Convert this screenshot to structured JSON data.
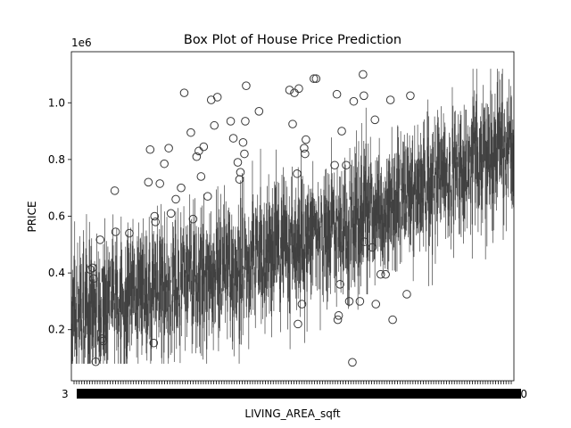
{
  "chart_data": {
    "type": "box",
    "title": "Box Plot of House Price Prediction",
    "xlabel": "LIVING_AREA_sqft",
    "ylabel": "PRICE",
    "y_offset_label": "1e6",
    "y_ticks": [
      0.2,
      0.4,
      0.6,
      0.8,
      1.0
    ],
    "y_tick_labels": [
      "0.2",
      "0.4",
      "0.6",
      "0.8",
      "1.0"
    ],
    "ylim": [
      0.02,
      1.18
    ],
    "x_first_tick_label": "3",
    "x_last_tick_label": "0",
    "x_category_count": 600,
    "grid": false,
    "box_color": "#404040",
    "median_trend": [
      [
        0.0,
        0.25
      ],
      [
        0.1,
        0.3
      ],
      [
        0.2,
        0.33
      ],
      [
        0.3,
        0.38
      ],
      [
        0.4,
        0.42
      ],
      [
        0.5,
        0.48
      ],
      [
        0.6,
        0.55
      ],
      [
        0.7,
        0.63
      ],
      [
        0.8,
        0.72
      ],
      [
        0.9,
        0.78
      ],
      [
        1.0,
        0.82
      ]
    ],
    "outliers": [
      [
        0.043,
        0.412
      ],
      [
        0.048,
        0.418
      ],
      [
        0.05,
        0.38
      ],
      [
        0.055,
        0.087
      ],
      [
        0.065,
        0.517
      ],
      [
        0.069,
        0.168
      ],
      [
        0.072,
        0.16
      ],
      [
        0.098,
        0.69
      ],
      [
        0.1,
        0.545
      ],
      [
        0.131,
        0.54
      ],
      [
        0.174,
        0.72
      ],
      [
        0.178,
        0.835
      ],
      [
        0.186,
        0.153
      ],
      [
        0.188,
        0.6
      ],
      [
        0.19,
        0.58
      ],
      [
        0.2,
        0.715
      ],
      [
        0.21,
        0.785
      ],
      [
        0.22,
        0.84
      ],
      [
        0.225,
        0.61
      ],
      [
        0.236,
        0.66
      ],
      [
        0.248,
        0.7
      ],
      [
        0.255,
        1.035
      ],
      [
        0.27,
        0.895
      ],
      [
        0.275,
        0.59
      ],
      [
        0.283,
        0.81
      ],
      [
        0.288,
        0.83
      ],
      [
        0.293,
        0.74
      ],
      [
        0.299,
        0.845
      ],
      [
        0.308,
        0.67
      ],
      [
        0.316,
        1.01
      ],
      [
        0.323,
        0.92
      ],
      [
        0.33,
        1.02
      ],
      [
        0.36,
        0.935
      ],
      [
        0.366,
        0.875
      ],
      [
        0.376,
        0.79
      ],
      [
        0.38,
        0.73
      ],
      [
        0.382,
        0.755
      ],
      [
        0.388,
        0.86
      ],
      [
        0.391,
        0.82
      ],
      [
        0.393,
        0.935
      ],
      [
        0.395,
        1.06
      ],
      [
        0.424,
        0.97
      ],
      [
        0.493,
        1.045
      ],
      [
        0.5,
        0.925
      ],
      [
        0.504,
        1.035
      ],
      [
        0.51,
        0.75
      ],
      [
        0.512,
        0.22
      ],
      [
        0.514,
        1.05
      ],
      [
        0.521,
        0.29
      ],
      [
        0.526,
        0.84
      ],
      [
        0.528,
        0.82
      ],
      [
        0.53,
        0.87
      ],
      [
        0.548,
        1.085
      ],
      [
        0.553,
        1.085
      ],
      [
        0.595,
        0.78
      ],
      [
        0.6,
        1.03
      ],
      [
        0.602,
        0.235
      ],
      [
        0.604,
        0.25
      ],
      [
        0.607,
        0.36
      ],
      [
        0.611,
        0.9
      ],
      [
        0.621,
        0.78
      ],
      [
        0.628,
        0.3
      ],
      [
        0.635,
        0.085
      ],
      [
        0.638,
        1.005
      ],
      [
        0.652,
        0.3
      ],
      [
        0.659,
        1.1
      ],
      [
        0.661,
        1.025
      ],
      [
        0.662,
        0.51
      ],
      [
        0.68,
        0.49
      ],
      [
        0.686,
        0.94
      ],
      [
        0.688,
        0.29
      ],
      [
        0.699,
        0.395
      ],
      [
        0.71,
        0.395
      ],
      [
        0.721,
        1.01
      ],
      [
        0.726,
        0.235
      ],
      [
        0.758,
        0.325
      ],
      [
        0.766,
        1.025
      ]
    ]
  }
}
